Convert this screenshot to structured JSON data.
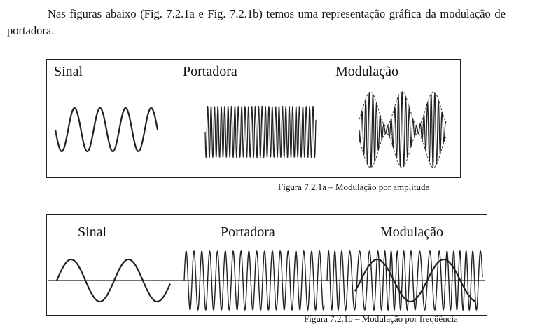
{
  "intro_text": "Nas figuras abaixo (Fig. 7.2.1a e Fig. 7.2.1b) temos uma representação gráfica da modulação de portadora.",
  "figure_a": {
    "labels": {
      "signal": "Sinal",
      "carrier": "Portadora",
      "modulation": "Modulação"
    },
    "caption": "Figura 7.2.1a – Modulação por amplitude"
  },
  "figure_b": {
    "labels": {
      "signal": "Sinal",
      "carrier": "Portadora",
      "modulation": "Modulação"
    },
    "caption": "Figura 7.2.1b – Modulação por freqüência"
  },
  "colors": {
    "ink": "#222222",
    "background": "#ffffff"
  }
}
